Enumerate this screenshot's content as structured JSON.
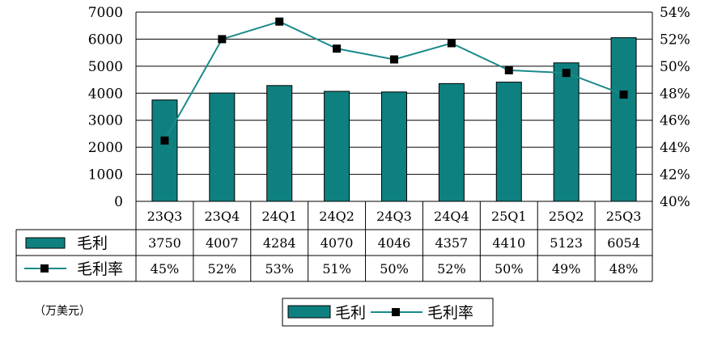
{
  "chart_data": {
    "type": "bar+line",
    "categories": [
      "23Q3",
      "23Q4",
      "24Q1",
      "24Q2",
      "24Q3",
      "24Q4",
      "25Q1",
      "25Q2",
      "25Q3"
    ],
    "series": [
      {
        "name": "毛利",
        "type": "bar",
        "axis": "left",
        "values": [
          3750,
          4007,
          4284,
          4070,
          4046,
          4357,
          4410,
          5123,
          6054
        ],
        "color": "#0f8080"
      },
      {
        "name": "毛利率",
        "type": "line",
        "axis": "right",
        "values": [
          44.5,
          52.0,
          53.3,
          51.3,
          50.5,
          51.7,
          49.7,
          49.5,
          47.9
        ],
        "color": "#1a8a8a"
      }
    ],
    "table_rows": [
      {
        "label": "毛利",
        "cells": [
          "3750",
          "4007",
          "4284",
          "4070",
          "4046",
          "4357",
          "4410",
          "5123",
          "6054"
        ]
      },
      {
        "label": "毛利率",
        "cells": [
          "45%",
          "52%",
          "53%",
          "51%",
          "50%",
          "52%",
          "50%",
          "49%",
          "48%"
        ]
      }
    ],
    "y_left": {
      "range": [
        0,
        7000
      ],
      "ticks": [
        "0",
        "1000",
        "2000",
        "3000",
        "4000",
        "5000",
        "6000",
        "7000"
      ]
    },
    "y_right": {
      "range": [
        40,
        54
      ],
      "ticks": [
        "40%",
        "42%",
        "44%",
        "46%",
        "48%",
        "50%",
        "52%",
        "54%"
      ]
    },
    "grid": true,
    "legend_position": "bottom",
    "legend": [
      "毛利",
      "毛利率"
    ],
    "unit_label": "（万美元）"
  }
}
